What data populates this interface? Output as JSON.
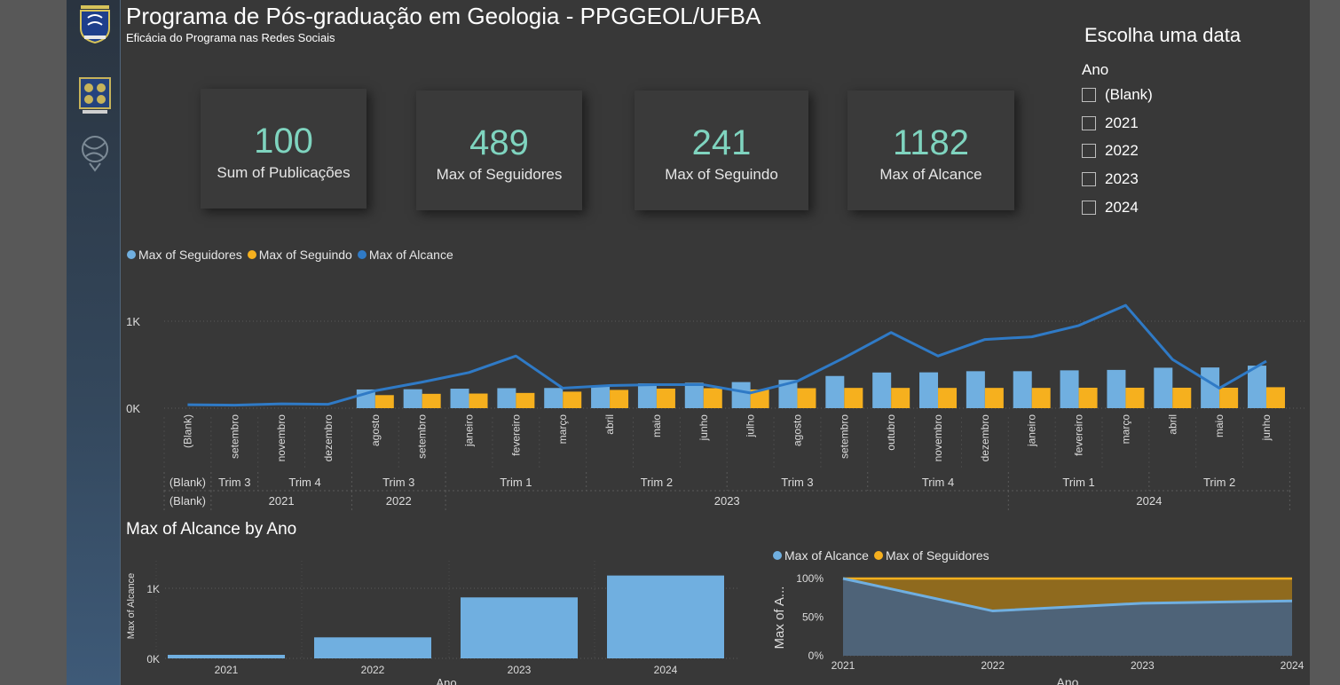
{
  "header": {
    "title": "Programa de Pós-graduação em Geologia - PPGGEOL/UFBA",
    "subtitle": "Eficácia do Programa nas Redes Sociais"
  },
  "sidebar": {
    "icons": [
      "ufba-crest-icon",
      "university-seal-icon",
      "globe-emblem-icon"
    ]
  },
  "cards": [
    {
      "value": "100",
      "label": "Sum of Publicações"
    },
    {
      "value": "489",
      "label": "Max of Seguidores"
    },
    {
      "value": "241",
      "label": "Max of Seguindo"
    },
    {
      "value": "1182",
      "label": "Max of Alcance"
    }
  ],
  "slicer": {
    "title": "Escolha uma data",
    "field": "Ano",
    "options": [
      "(Blank)",
      "2021",
      "2022",
      "2023",
      "2024"
    ]
  },
  "colors": {
    "seguidores": "#70afe0",
    "seguindo": "#f6b01e",
    "alcance": "#2f7ac6",
    "kpi": "#7fd4bf"
  },
  "chart_data": [
    {
      "type": "bar+line",
      "legend": [
        "Max of Seguidores",
        "Max of Seguindo",
        "Max of Alcance"
      ],
      "y_ticks": [
        "0K",
        "1K"
      ],
      "ylim": [
        0,
        1200
      ],
      "categories": [
        "(Blank)",
        "setembro",
        "novembro",
        "dezembro",
        "agosto",
        "setembro",
        "janeiro",
        "fevereiro",
        "março",
        "abril",
        "maio",
        "junho",
        "julho",
        "agosto",
        "setembro",
        "outubro",
        "novembro",
        "dezembro",
        "janeiro",
        "fevereiro",
        "março",
        "abril",
        "maio",
        "junho"
      ],
      "series": [
        {
          "name": "Max of Seguidores",
          "kind": "bar",
          "values": [
            null,
            null,
            null,
            null,
            215,
            218,
            224,
            230,
            232,
            255,
            285,
            292,
            300,
            325,
            370,
            410,
            412,
            425,
            425,
            435,
            440,
            465,
            468,
            489
          ]
        },
        {
          "name": "Max of Seguindo",
          "kind": "bar",
          "values": [
            null,
            null,
            null,
            null,
            150,
            165,
            168,
            175,
            190,
            210,
            225,
            230,
            215,
            230,
            233,
            233,
            233,
            233,
            233,
            235,
            235,
            235,
            235,
            241
          ]
        },
        {
          "name": "Max of Alcance",
          "kind": "line",
          "values": [
            40,
            35,
            50,
            45,
            200,
            300,
            410,
            600,
            230,
            260,
            270,
            270,
            175,
            310,
            580,
            870,
            600,
            790,
            820,
            950,
            1182,
            560,
            230,
            540
          ]
        }
      ],
      "quarter_labels": [
        {
          "label": "(Blank)",
          "from": 0,
          "to": 0
        },
        {
          "label": "Trim 3",
          "from": 1,
          "to": 1
        },
        {
          "label": "Trim 4",
          "from": 2,
          "to": 3
        },
        {
          "label": "Trim 3",
          "from": 4,
          "to": 5
        },
        {
          "label": "Trim 1",
          "from": 6,
          "to": 8
        },
        {
          "label": "Trim 2",
          "from": 9,
          "to": 11
        },
        {
          "label": "Trim 3",
          "from": 12,
          "to": 14
        },
        {
          "label": "Trim 4",
          "from": 15,
          "to": 17
        },
        {
          "label": "Trim 1",
          "from": 18,
          "to": 20
        },
        {
          "label": "Trim 2",
          "from": 21,
          "to": 23
        }
      ],
      "year_labels": [
        {
          "label": "(Blank)",
          "from": 0,
          "to": 0
        },
        {
          "label": "2021",
          "from": 1,
          "to": 3
        },
        {
          "label": "2022",
          "from": 4,
          "to": 5
        },
        {
          "label": "2023",
          "from": 6,
          "to": 17
        },
        {
          "label": "2024",
          "from": 18,
          "to": 23
        }
      ]
    },
    {
      "type": "bar",
      "title": "Max of Alcance by Ano",
      "categories": [
        "2021",
        "2022",
        "2023",
        "2024"
      ],
      "values": [
        50,
        300,
        870,
        1182
      ],
      "ylabel": "Max of Alcance",
      "xlabel": "Ano",
      "y_ticks": [
        "0K",
        "1K"
      ],
      "ylim": [
        0,
        1400
      ]
    },
    {
      "type": "area",
      "legend": [
        "Max of Alcance",
        "Max of Seguidores"
      ],
      "x": [
        "2021",
        "2022",
        "2023",
        "2024"
      ],
      "series": [
        {
          "name": "Max of Alcance",
          "values": [
            100,
            58,
            68,
            71
          ]
        },
        {
          "name": "Max of Seguidores",
          "values": [
            100,
            100,
            100,
            100
          ]
        }
      ],
      "ylabel": "Max of A...",
      "xlabel": "Ano",
      "y_ticks": [
        "0%",
        "50%",
        "100%"
      ],
      "ylim": [
        0,
        100
      ]
    }
  ]
}
